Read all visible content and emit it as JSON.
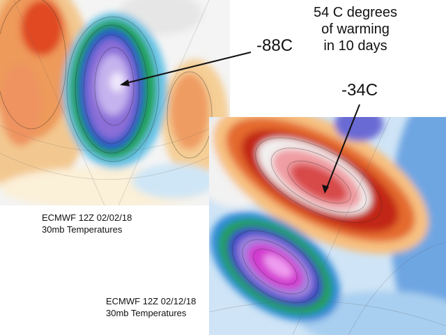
{
  "headline": [
    "54 C degrees",
    "of warming",
    "in 10 days"
  ],
  "maps": [
    {
      "value_label": "-88C",
      "caption": [
        "ECMWF 12Z 02/02/18",
        "30mb Temperatures"
      ]
    },
    {
      "value_label": "-34C",
      "caption": [
        "ECMWF 12Z 02/12/18",
        "30mb Temperatures"
      ]
    }
  ],
  "colors": {
    "warm_orange": "#f0a060",
    "warm_red": "#d42a12",
    "cold_green": "#1aa04a",
    "cold_blue": "#2a58c8",
    "cold_purple": "#8a6ad8",
    "cold_magenta": "#d238d2",
    "cool_lightblue": "#9cc4ee",
    "vortex_pink": "#f3c4c8"
  }
}
